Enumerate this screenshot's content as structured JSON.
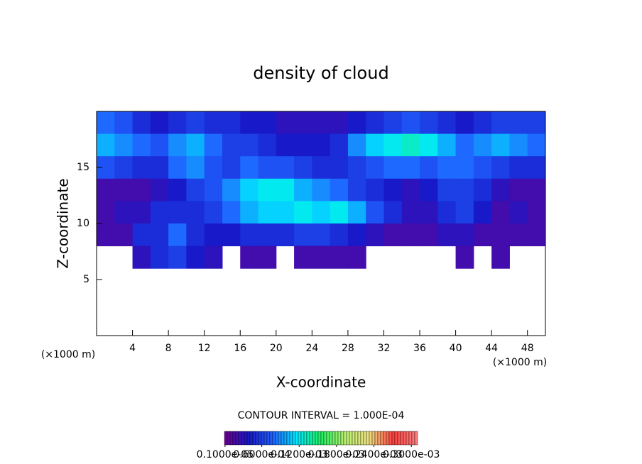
{
  "chart_data": {
    "type": "heatmap",
    "title": "density of cloud",
    "x_label": "X-coordinate",
    "y_label": "Z-coordinate",
    "x_unit": "(×1000 m)",
    "y_unit": "(×1000 m)",
    "note": "CONTOUR INTERVAL = 1.000E-04",
    "x": [
      1,
      3,
      5,
      7,
      9,
      11,
      13,
      15,
      17,
      19,
      21,
      23,
      25,
      27,
      29,
      31,
      33,
      35,
      37,
      39,
      41,
      43,
      45,
      47,
      49
    ],
    "y": [
      19,
      17,
      15,
      13,
      11,
      9,
      7,
      5,
      3,
      1
    ],
    "z": [
      [
        8e-05,
        7e-05,
        5e-05,
        4e-05,
        5e-05,
        6e-05,
        5e-05,
        5e-05,
        4e-05,
        4e-05,
        3e-05,
        3e-05,
        3e-05,
        3e-05,
        4e-05,
        5e-05,
        6e-05,
        7e-05,
        6e-05,
        5e-05,
        4e-05,
        5e-05,
        6e-05,
        6e-05,
        6e-05
      ],
      [
        0.0001,
        9e-05,
        8e-05,
        7e-05,
        9e-05,
        0.0001,
        8e-05,
        6e-05,
        6e-05,
        5e-05,
        4e-05,
        4e-05,
        4e-05,
        5e-05,
        9e-05,
        0.00011,
        0.00012,
        0.00013,
        0.00012,
        0.0001,
        8e-05,
        9e-05,
        0.0001,
        9e-05,
        8e-05
      ],
      [
        7e-05,
        6e-05,
        5e-05,
        5e-05,
        8e-05,
        9e-05,
        7e-05,
        6e-05,
        8e-05,
        7e-05,
        7e-05,
        6e-05,
        5e-05,
        5e-05,
        6e-05,
        7e-05,
        8e-05,
        8e-05,
        7e-05,
        8e-05,
        8e-05,
        7e-05,
        6e-05,
        5e-05,
        5e-05
      ],
      [
        2e-05,
        2e-05,
        2e-05,
        3e-05,
        4e-05,
        6e-05,
        7e-05,
        9e-05,
        0.00011,
        0.00012,
        0.00012,
        0.0001,
        9e-05,
        8e-05,
        6e-05,
        5e-05,
        4e-05,
        3e-05,
        4e-05,
        6e-05,
        6e-05,
        5e-05,
        3e-05,
        2e-05,
        2e-05
      ],
      [
        2e-05,
        3e-05,
        3e-05,
        5e-05,
        5e-05,
        5e-05,
        6e-05,
        8e-05,
        0.0001,
        0.00011,
        0.00011,
        0.00012,
        0.00011,
        0.00012,
        0.0001,
        7e-05,
        5e-05,
        3e-05,
        3e-05,
        5e-05,
        6e-05,
        4e-05,
        2e-05,
        3e-05,
        2e-05
      ],
      [
        2e-05,
        2e-05,
        5e-05,
        5e-05,
        8e-05,
        5e-05,
        4e-05,
        4e-05,
        5e-05,
        5e-05,
        5e-05,
        6e-05,
        6e-05,
        5e-05,
        4e-05,
        3e-05,
        2e-05,
        2e-05,
        2e-05,
        3e-05,
        3e-05,
        2e-05,
        2e-05,
        2e-05,
        2e-05
      ],
      [
        null,
        null,
        3e-05,
        5e-05,
        6e-05,
        4e-05,
        3e-05,
        null,
        2e-05,
        2e-05,
        null,
        2e-05,
        2e-05,
        2e-05,
        2e-05,
        null,
        null,
        null,
        null,
        null,
        2e-05,
        null,
        2e-05,
        null,
        null
      ],
      [
        null,
        null,
        null,
        null,
        null,
        null,
        null,
        null,
        null,
        null,
        null,
        null,
        null,
        null,
        null,
        null,
        null,
        null,
        null,
        null,
        null,
        null,
        null,
        null,
        null
      ],
      [
        null,
        null,
        null,
        null,
        null,
        null,
        null,
        null,
        null,
        null,
        null,
        null,
        null,
        null,
        null,
        null,
        null,
        null,
        null,
        null,
        null,
        null,
        null,
        null,
        null
      ],
      [
        null,
        null,
        null,
        null,
        null,
        null,
        null,
        null,
        null,
        null,
        null,
        null,
        null,
        null,
        null,
        null,
        null,
        null,
        null,
        null,
        null,
        null,
        null,
        null,
        null
      ]
    ],
    "xlim": [
      0,
      50
    ],
    "ylim": [
      0,
      20
    ],
    "xticks": [
      4,
      8,
      12,
      16,
      20,
      24,
      28,
      32,
      36,
      40,
      44,
      48
    ],
    "yticks": [
      5,
      10,
      15
    ],
    "colormap": [
      "#700090",
      "#1818c8",
      "#2060ff",
      "#00e8ff",
      "#20f060",
      "#b8f070",
      "#f0e080",
      "#ff4040",
      "#ff8080"
    ],
    "clim": [
      0,
      0.00031
    ],
    "cticks": [
      {
        "value": 1e-06,
        "label": "0.1000e-05"
      },
      {
        "value": 6e-05,
        "label": "0.6000e-04"
      },
      {
        "value": 0.00012,
        "label": "0.1200e-03"
      },
      {
        "value": 0.00018,
        "label": "0.1800e-03"
      },
      {
        "value": 0.00024,
        "label": "0.2400e-03"
      },
      {
        "value": 0.0003,
        "label": "0.3000e-03"
      }
    ]
  }
}
